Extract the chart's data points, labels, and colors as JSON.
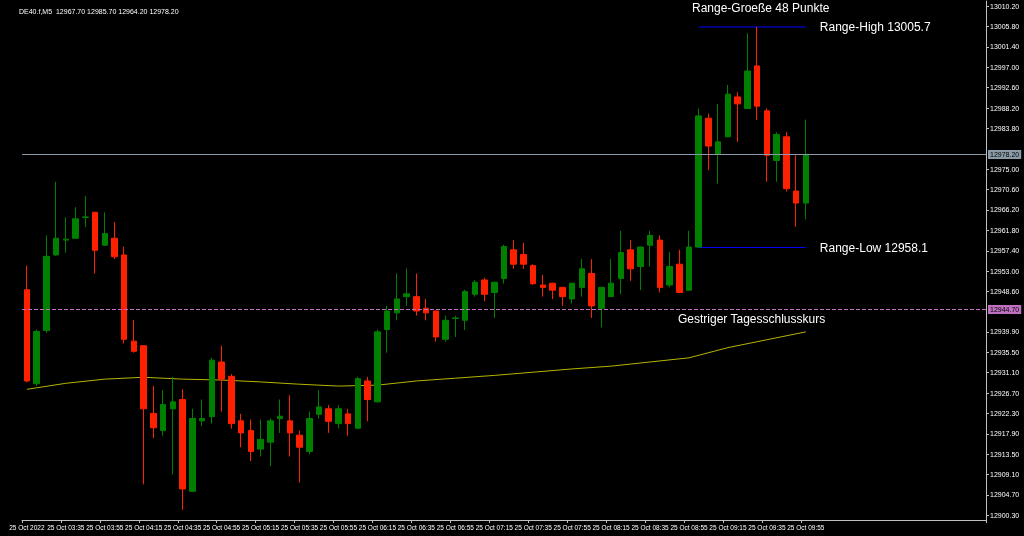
{
  "chart_data": {
    "type": "candlestick",
    "title": "DE40.f,M5  12967.70 12985.70 12964.20 12978.20",
    "categories": [
      "25 Oct 2022",
      null,
      null,
      null,
      "25 Oct 03:35",
      null,
      null,
      null,
      "25 Oct 03:55",
      null,
      null,
      null,
      "25 Oct 04:15",
      null,
      null,
      null,
      "25 Oct 04:35",
      null,
      null,
      null,
      "25 Oct 04:55",
      null,
      null,
      null,
      "25 Oct 05:15",
      null,
      null,
      null,
      "25 Oct 05:35",
      null,
      null,
      null,
      "25 Oct 05:55",
      null,
      null,
      null,
      "25 Oct 06:15",
      null,
      null,
      null,
      "25 Oct 06:35",
      null,
      null,
      null,
      "25 Oct 06:55",
      null,
      null,
      null,
      "25 Oct 07:15",
      null,
      null,
      null,
      "25 Oct 07:35",
      null,
      null,
      null,
      "25 Oct 07:55",
      null,
      null,
      null,
      "25 Oct 08:15",
      null,
      null,
      null,
      "25 Oct 08:35",
      null,
      null,
      null,
      "25 Oct 08:55",
      null,
      null,
      null,
      "25 Oct 09:15",
      null,
      null,
      null,
      "25 Oct 09:35",
      null,
      null,
      null,
      "25 Oct 09:55",
      null,
      null,
      null,
      null,
      null,
      null,
      null,
      null,
      null,
      null,
      null,
      null,
      null,
      null,
      null,
      null,
      null,
      null
    ],
    "ohlc": [
      [
        12949.0,
        12954.2,
        12929.0,
        12929.3
      ],
      [
        12928.7,
        12940.4,
        12928.2,
        12940.0
      ],
      [
        12940.2,
        12960.7,
        12939.7,
        12956.2
      ],
      [
        12956.5,
        12972.3,
        12956.3,
        12960.1
      ],
      [
        12959.7,
        12964.6,
        12957.0,
        12959.9
      ],
      [
        12960.1,
        12966.8,
        12960.0,
        12964.3
      ],
      [
        12964.6,
        12969.2,
        12962.5,
        12964.7
      ],
      [
        12965.7,
        12965.8,
        12952.5,
        12957.5
      ],
      [
        12958.6,
        12965.7,
        12958.5,
        12961.1
      ],
      [
        12960.1,
        12963.6,
        12955.6,
        12956.1
      ],
      [
        12956.5,
        12958.3,
        12937.4,
        12938.3
      ],
      [
        12937.9,
        12942.5,
        12935.4,
        12935.7
      ],
      [
        12936.9,
        12937.0,
        12907.0,
        12923.3
      ],
      [
        12922.3,
        12928.2,
        12917.0,
        12919.2
      ],
      [
        12918.6,
        12927.3,
        12917.5,
        12924.2
      ],
      [
        12923.3,
        12930.2,
        12909.1,
        12924.8
      ],
      [
        12925.3,
        12927.5,
        12901.5,
        12906.0
      ],
      [
        12905.5,
        12923.3,
        12905.4,
        12921.2
      ],
      [
        12920.7,
        12925.3,
        12919.6,
        12921.2
      ],
      [
        12921.6,
        12934.3,
        12920.1,
        12933.8
      ],
      [
        12933.4,
        12936.9,
        12922.7,
        12929.7
      ],
      [
        12930.3,
        12930.8,
        12919.0,
        12920.1
      ],
      [
        12920.7,
        12922.2,
        12915.0,
        12918.1
      ],
      [
        12918.6,
        12921.0,
        12912.0,
        12914.1
      ],
      [
        12914.6,
        12921.0,
        12913.0,
        12916.7
      ],
      [
        12916.1,
        12921.2,
        12910.9,
        12920.7
      ],
      [
        12921.2,
        12925.3,
        12918.1,
        12921.7
      ],
      [
        12920.7,
        12926.2,
        12913.0,
        12918.1
      ],
      [
        12917.6,
        12918.6,
        12907.4,
        12915.0
      ],
      [
        12914.1,
        12922.7,
        12913.5,
        12921.2
      ],
      [
        12922.1,
        12927.3,
        12921.2,
        12923.7
      ],
      [
        12923.3,
        12924.1,
        12918.1,
        12920.6
      ],
      [
        12920.1,
        12924.1,
        12919.1,
        12923.3
      ],
      [
        12922.2,
        12923.3,
        12917.5,
        12920.1
      ],
      [
        12919.1,
        12930.2,
        12919.0,
        12929.8
      ],
      [
        12929.3,
        12930.2,
        12920.6,
        12925.3
      ],
      [
        12924.8,
        12940.4,
        12924.7,
        12939.9
      ],
      [
        12940.4,
        12945.5,
        12935.4,
        12944.4
      ],
      [
        12944.0,
        12952.5,
        12942.4,
        12947.0
      ],
      [
        12947.5,
        12953.6,
        12945.5,
        12948.1
      ],
      [
        12947.5,
        12952.5,
        12943.4,
        12944.4
      ],
      [
        12945.0,
        12947.0,
        12942.4,
        12944.0
      ],
      [
        12944.4,
        12944.5,
        12937.8,
        12938.8
      ],
      [
        12938.3,
        12943.4,
        12937.8,
        12942.4
      ],
      [
        12942.8,
        12943.4,
        12938.8,
        12942.9
      ],
      [
        12942.4,
        12949.0,
        12940.3,
        12948.6
      ],
      [
        12948.0,
        12951.1,
        12947.5,
        12950.6
      ],
      [
        12951.1,
        12951.6,
        12946.5,
        12948.0
      ],
      [
        12948.4,
        12950.7,
        12942.9,
        12950.6
      ],
      [
        12951.4,
        12958.7,
        12950.3,
        12958.3
      ],
      [
        12957.6,
        12959.7,
        12953.5,
        12954.5
      ],
      [
        12956.6,
        12959.1,
        12953.5,
        12954.5
      ],
      [
        12954.2,
        12954.5,
        12950.0,
        12950.3
      ],
      [
        12950.0,
        12952.2,
        12947.5,
        12949.5
      ],
      [
        12950.4,
        12950.5,
        12947.0,
        12948.9
      ],
      [
        12949.5,
        12949.6,
        12945.5,
        12947.5
      ],
      [
        12947.0,
        12950.5,
        12946.0,
        12950.4
      ],
      [
        12949.5,
        12955.6,
        12947.5,
        12953.5
      ],
      [
        12952.5,
        12955.6,
        12942.9,
        12945.5
      ],
      [
        12945.0,
        12949.6,
        12940.9,
        12949.5
      ],
      [
        12947.5,
        12955.6,
        12947.4,
        12950.4
      ],
      [
        12951.4,
        12961.7,
        12948.0,
        12957.0
      ],
      [
        12957.6,
        12959.7,
        12950.9,
        12953.5
      ],
      [
        12954.0,
        12958.3,
        12948.9,
        12958.2
      ],
      [
        12958.6,
        12961.7,
        12954.0,
        12960.7
      ],
      [
        12959.7,
        12960.7,
        12948.4,
        12949.5
      ],
      [
        12950.0,
        12957.1,
        12949.5,
        12954.0
      ],
      [
        12954.5,
        12957.6,
        12948.3,
        12948.4
      ],
      [
        12948.9,
        12961.7,
        12948.8,
        12958.2
      ],
      [
        12958.2,
        12988.1,
        12958.1,
        12986.5
      ],
      [
        12986.0,
        12987.0,
        12974.8,
        12980.0
      ],
      [
        12978.3,
        12989.1,
        12971.9,
        12980.9
      ],
      [
        12982.0,
        12993.2,
        12981.9,
        12991.2
      ],
      [
        12990.6,
        12991.6,
        12980.9,
        12989.1
      ],
      [
        12988.1,
        13004.3,
        12988.0,
        12996.2
      ],
      [
        12997.3,
        13005.7,
        12985.6,
        12988.6
      ],
      [
        12987.6,
        12988.1,
        12972.3,
        12978.0
      ],
      [
        12976.9,
        12983.0,
        12972.3,
        12982.5
      ],
      [
        12982.0,
        12983.0,
        12970.2,
        12970.8
      ],
      [
        12970.3,
        12978.0,
        12962.6,
        12967.7
      ],
      [
        12967.7,
        12985.7,
        12964.2,
        12978.2
      ],
      null,
      null,
      null,
      null,
      null,
      null,
      null,
      null,
      null,
      null,
      null,
      null,
      null,
      null,
      null,
      null,
      null,
      null
    ],
    "colors": [
      "#ff2000",
      "#008000",
      "#008000",
      "#008000",
      "#008000",
      "#008000",
      "#008000",
      "#ff2000",
      "#008000",
      "#ff2000",
      "#ff2000",
      "#ff2000",
      "#ff2000",
      "#ff2000",
      "#008000",
      "#008000",
      "#ff2000",
      "#008000",
      "#008000",
      "#008000",
      "#ff2000",
      "#ff2000",
      "#ff2000",
      "#ff2000",
      "#008000",
      "#008000",
      "#008000",
      "#ff2000",
      "#ff2000",
      "#008000",
      "#008000",
      "#ff2000",
      "#008000",
      "#ff2000",
      "#008000",
      "#ff2000",
      "#008000",
      "#008000",
      "#008000",
      "#008000",
      "#ff2000",
      "#ff2000",
      "#ff2000",
      "#008000",
      "#008000",
      "#008000",
      "#008000",
      "#ff2000",
      "#008000",
      "#008000",
      "#ff2000",
      "#ff2000",
      "#ff2000",
      "#ff2000",
      "#ff2000",
      "#ff2000",
      "#008000",
      "#008000",
      "#ff2000",
      "#008000",
      "#008000",
      "#008000",
      "#ff2000",
      "#008000",
      "#008000",
      "#ff2000",
      "#008000",
      "#ff2000",
      "#008000",
      "#008000",
      "#ff2000",
      "#008000",
      "#008000",
      "#ff2000",
      "#008000",
      "#ff2000",
      "#ff2000",
      "#008000",
      "#ff2000",
      "#ff2000",
      "#008000",
      null,
      null,
      null,
      null,
      null,
      null,
      null,
      null,
      null,
      null,
      null,
      null,
      null,
      null,
      null,
      null,
      null,
      null
    ],
    "series": [
      {
        "type": "line",
        "color": "#b4b400",
        "x": [
          "25 Oct 2022",
          "25 Oct 03:35",
          "25 Oct 03:55",
          "25 Oct 04:15",
          "25 Oct 04:35",
          "25 Oct 04:55",
          "25 Oct 05:15",
          "25 Oct 05:35",
          "25 Oct 05:55",
          "25 Oct 06:15",
          "25 Oct 06:35",
          "25 Oct 06:55",
          "25 Oct 07:15",
          "25 Oct 07:35",
          "25 Oct 07:55",
          "25 Oct 08:15",
          "25 Oct 08:35",
          "25 Oct 08:55",
          "25 Oct 09:15",
          "25 Oct 09:35",
          "25 Oct 09:55"
        ],
        "values": [
          12927.5,
          12928.8,
          12929.7,
          12930.1,
          12929.7,
          12929.5,
          12929.1,
          12928.6,
          12928.2,
          12928.4,
          12929.3,
          12929.9,
          12930.5,
          12931.2,
          12931.9,
          12932.5,
          12933.4,
          12934.3,
          12936.5,
          12938.2,
          12939.9
        ]
      },
      {
        "type": "line",
        "name": "Range-High 13005.7",
        "color": "#0000ff",
        "values": [
          null,
          null,
          null,
          null,
          null,
          null,
          null,
          null,
          null,
          null,
          null,
          null,
          null,
          null,
          null,
          null,
          null,
          null,
          null,
          null,
          null,
          null,
          null,
          null,
          null,
          null,
          null,
          null,
          null,
          null,
          null,
          null,
          null,
          null,
          null,
          null,
          null,
          null,
          null,
          null,
          null,
          null,
          null,
          null,
          null,
          null,
          null,
          null,
          null,
          null,
          null,
          null,
          null,
          null,
          null,
          null,
          null,
          null,
          null,
          null,
          null,
          null,
          null,
          null,
          null,
          null,
          null,
          null,
          null,
          13005.7,
          13005.7,
          13005.7,
          13005.7,
          13005.7,
          13005.7,
          13005.7,
          13005.7,
          13005.7,
          13005.7,
          13005.7,
          13005.7,
          null,
          null,
          null,
          null,
          null,
          null,
          null,
          null,
          null,
          null,
          null,
          null,
          null,
          null,
          null,
          null,
          null,
          null
        ]
      },
      {
        "type": "line",
        "name": "Range-Low 12958.1",
        "color": "#0000ff",
        "values": [
          null,
          null,
          null,
          null,
          null,
          null,
          null,
          null,
          null,
          null,
          null,
          null,
          null,
          null,
          null,
          null,
          null,
          null,
          null,
          null,
          null,
          null,
          null,
          null,
          null,
          null,
          null,
          null,
          null,
          null,
          null,
          null,
          null,
          null,
          null,
          null,
          null,
          null,
          null,
          null,
          null,
          null,
          null,
          null,
          null,
          null,
          null,
          null,
          null,
          null,
          null,
          null,
          null,
          null,
          null,
          null,
          null,
          null,
          null,
          null,
          null,
          null,
          null,
          null,
          null,
          null,
          null,
          null,
          null,
          12958.1,
          12958.1,
          12958.1,
          12958.1,
          12958.1,
          12958.1,
          12958.1,
          12958.1,
          12958.1,
          12958.1,
          12958.1,
          12958.1,
          null,
          null,
          null,
          null,
          null,
          null,
          null,
          null,
          null,
          null,
          null,
          null,
          null,
          null,
          null,
          null,
          null,
          null
        ]
      }
    ],
    "ref_lines": [
      {
        "axis": "y",
        "value": 12978.2,
        "label": "12978.20",
        "color": "#8a9aa6"
      },
      {
        "axis": "y",
        "value": 12944.7,
        "label": "12944.70",
        "color": "#c070c0",
        "line_style": "dashed"
      }
    ],
    "annotations": [
      "Range-Groeße 48 Punkte",
      {
        "text": "Gestriger Tagesschlusskurs",
        "y": 12944.7
      }
    ],
    "ylim": [
      12899.3,
      13011.3
    ],
    "yticks": [
      {
        "value": 12900.3,
        "label": "12900.30"
      },
      {
        "value": 12904.7,
        "label": "12904.70"
      },
      {
        "value": 12909.1,
        "label": "12909.10"
      },
      {
        "value": 12913.5,
        "label": "12913.50"
      },
      {
        "value": 12917.9,
        "label": "12917.90"
      },
      {
        "value": 12922.3,
        "label": "12922.30"
      },
      {
        "value": 12926.7,
        "label": "12926.70"
      },
      {
        "value": 12931.1,
        "label": "12931.10"
      },
      {
        "value": 12935.5,
        "label": "12935.50"
      },
      {
        "value": 12939.9,
        "label": "12939.90"
      },
      {
        "value": 12948.6,
        "label": "12948.60"
      },
      {
        "value": 12953.0,
        "label": "12953.00"
      },
      {
        "value": 12957.4,
        "label": "12957.40"
      },
      {
        "value": 12961.8,
        "label": "12961.80"
      },
      {
        "value": 12966.2,
        "label": "12966.20"
      },
      {
        "value": 12970.6,
        "label": "12970.60"
      },
      {
        "value": 12975.0,
        "label": "12975.00"
      },
      {
        "value": 12983.8,
        "label": "12983.80"
      },
      {
        "value": 12988.2,
        "label": "12988.20"
      },
      {
        "value": 12992.6,
        "label": "12992.60"
      },
      {
        "value": 12997.0,
        "label": "12997.00"
      },
      {
        "value": 13001.4,
        "label": "13001.40"
      },
      {
        "value": 13005.8,
        "label": "13005.80"
      },
      {
        "value": 13010.2,
        "label": "13010.20"
      }
    ],
    "grid": false
  }
}
